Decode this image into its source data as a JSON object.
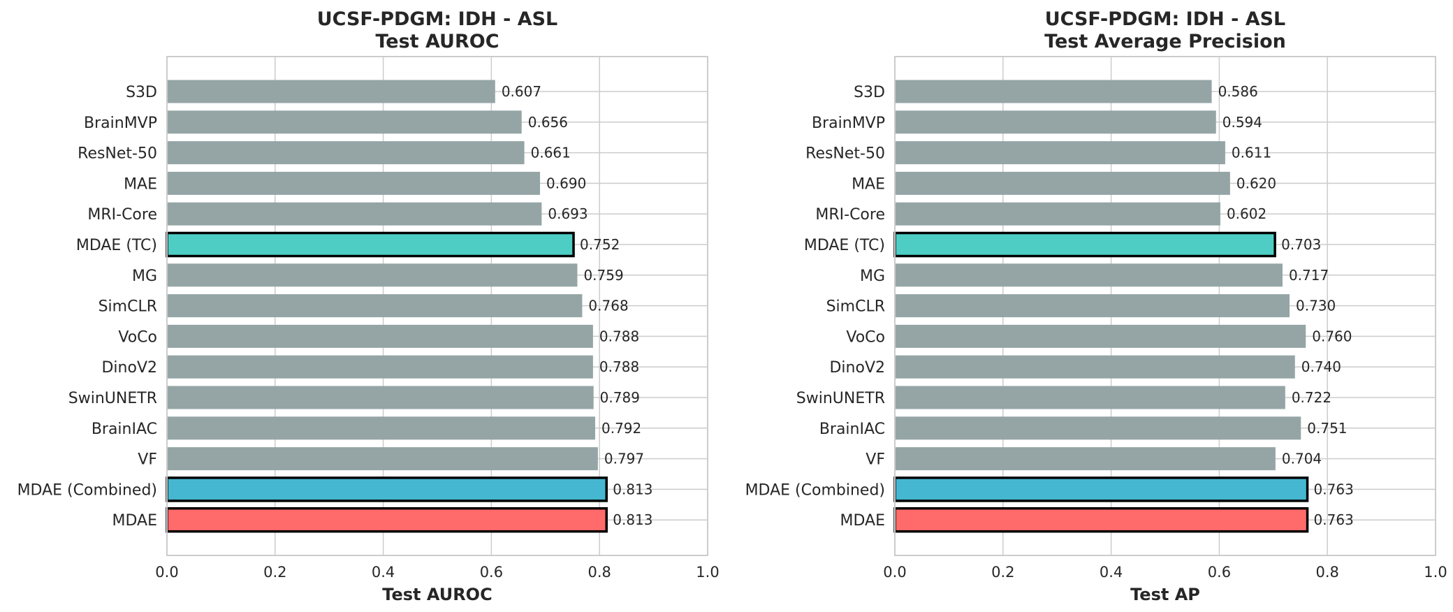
{
  "chart_data": [
    {
      "type": "bar",
      "orientation": "horizontal",
      "title": "UCSF-PDGM: IDH - ASL",
      "subtitle": "Test AUROC",
      "xlabel": "Test AUROC",
      "ylabel": "",
      "xlim": [
        0.0,
        1.0
      ],
      "xticks": [
        "0.0",
        "0.2",
        "0.4",
        "0.6",
        "0.8",
        "1.0"
      ],
      "grid": true,
      "categories": [
        "S3D",
        "BrainMVP",
        "ResNet-50",
        "MAE",
        "MRI-Core",
        "MDAE (TC)",
        "MG",
        "SimCLR",
        "VoCo",
        "DinoV2",
        "SwinUNETR",
        "BrainIAC",
        "VF",
        "MDAE (Combined)",
        "MDAE"
      ],
      "values": [
        0.607,
        0.656,
        0.661,
        0.69,
        0.693,
        0.752,
        0.759,
        0.768,
        0.788,
        0.788,
        0.789,
        0.792,
        0.797,
        0.813,
        0.813
      ],
      "value_labels": [
        "0.607",
        "0.656",
        "0.661",
        "0.690",
        "0.693",
        "0.752",
        "0.759",
        "0.768",
        "0.788",
        "0.788",
        "0.789",
        "0.792",
        "0.797",
        "0.813",
        "0.813"
      ],
      "colors": [
        "#95a5a6",
        "#95a5a6",
        "#95a5a6",
        "#95a5a6",
        "#95a5a6",
        "#4ecdc4",
        "#95a5a6",
        "#95a5a6",
        "#95a5a6",
        "#95a5a6",
        "#95a5a6",
        "#95a5a6",
        "#95a5a6",
        "#45b7d1",
        "#ff6b6b"
      ],
      "highlighted": [
        false,
        false,
        false,
        false,
        false,
        true,
        false,
        false,
        false,
        false,
        false,
        false,
        false,
        true,
        true
      ]
    },
    {
      "type": "bar",
      "orientation": "horizontal",
      "title": "UCSF-PDGM: IDH - ASL",
      "subtitle": "Test Average Precision",
      "xlabel": "Test AP",
      "ylabel": "",
      "xlim": [
        0.0,
        1.0
      ],
      "xticks": [
        "0.0",
        "0.2",
        "0.4",
        "0.6",
        "0.8",
        "1.0"
      ],
      "grid": true,
      "categories": [
        "S3D",
        "BrainMVP",
        "ResNet-50",
        "MAE",
        "MRI-Core",
        "MDAE (TC)",
        "MG",
        "SimCLR",
        "VoCo",
        "DinoV2",
        "SwinUNETR",
        "BrainIAC",
        "VF",
        "MDAE (Combined)",
        "MDAE"
      ],
      "values": [
        0.586,
        0.594,
        0.611,
        0.62,
        0.602,
        0.703,
        0.717,
        0.73,
        0.76,
        0.74,
        0.722,
        0.751,
        0.704,
        0.763,
        0.763
      ],
      "value_labels": [
        "0.586",
        "0.594",
        "0.611",
        "0.620",
        "0.602",
        "0.703",
        "0.717",
        "0.730",
        "0.760",
        "0.740",
        "0.722",
        "0.751",
        "0.704",
        "0.763",
        "0.763"
      ],
      "colors": [
        "#95a5a6",
        "#95a5a6",
        "#95a5a6",
        "#95a5a6",
        "#95a5a6",
        "#4ecdc4",
        "#95a5a6",
        "#95a5a6",
        "#95a5a6",
        "#95a5a6",
        "#95a5a6",
        "#95a5a6",
        "#95a5a6",
        "#45b7d1",
        "#ff6b6b"
      ],
      "highlighted": [
        false,
        false,
        false,
        false,
        false,
        true,
        false,
        false,
        false,
        false,
        false,
        false,
        false,
        true,
        true
      ]
    }
  ]
}
